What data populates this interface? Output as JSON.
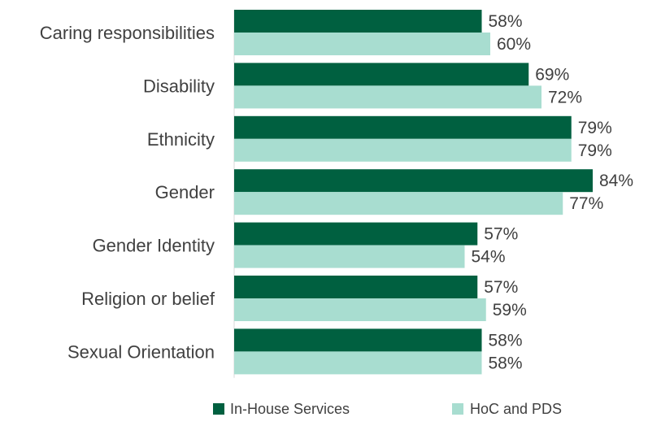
{
  "chart_data": {
    "type": "bar",
    "orientation": "horizontal",
    "categories": [
      "Caring responsibilities",
      "Disability",
      "Ethnicity",
      "Gender",
      "Gender Identity",
      "Religion or belief",
      "Sexual Orientation"
    ],
    "series": [
      {
        "name": "In-House Services",
        "color": "#006040",
        "values": [
          58,
          69,
          79,
          84,
          57,
          57,
          58
        ],
        "labels": [
          "58%",
          "69%",
          "79%",
          "84%",
          "57%",
          "57%",
          "58%"
        ]
      },
      {
        "name": "HoC and PDS",
        "color": "#a8ddd0",
        "values": [
          60,
          72,
          79,
          77,
          54,
          59,
          58
        ],
        "labels": [
          "60%",
          "72%",
          "79%",
          "77%",
          "54%",
          "59%",
          "58%"
        ]
      }
    ],
    "xlim": [
      0,
      100
    ],
    "grid": false,
    "legend_position": "bottom",
    "title": "",
    "xlabel": "",
    "ylabel": ""
  }
}
